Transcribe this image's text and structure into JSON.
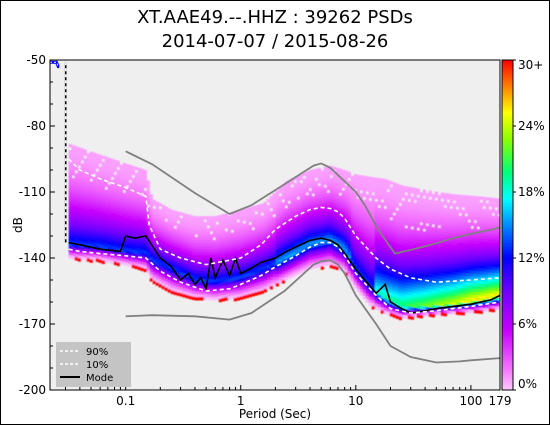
{
  "chart_data": {
    "type": "heatmap",
    "title_line1": "XT.AAE49.--.HHZ : 39262 PSDs",
    "title_line2": "2014-07-07 / 2015-08-26",
    "xlabel": "Period (Sec)",
    "ylabel": "dB",
    "x_scale": "log",
    "xlim": [
      0.022,
      179
    ],
    "ylim": [
      -200,
      -50
    ],
    "x_ticks": [
      {
        "value": 0.1,
        "label": "0.1"
      },
      {
        "value": 1,
        "label": "1"
      },
      {
        "value": 10,
        "label": "10"
      },
      {
        "value": 100,
        "label": "100"
      },
      {
        "value": 179,
        "label": "179"
      }
    ],
    "y_ticks": [
      {
        "value": -50,
        "label": "-50"
      },
      {
        "value": -80,
        "label": "-80"
      },
      {
        "value": -110,
        "label": "-110"
      },
      {
        "value": -140,
        "label": "-140"
      },
      {
        "value": -170,
        "label": "-170"
      },
      {
        "value": -200,
        "label": "-200"
      }
    ],
    "colorbar": {
      "ticks": [
        {
          "value": 0,
          "label": "0%"
        },
        {
          "value": 6,
          "label": "6%"
        },
        {
          "value": 12,
          "label": "12%"
        },
        {
          "value": 18,
          "label": "18%"
        },
        {
          "value": 24,
          "label": "24%"
        },
        {
          "value": 30,
          "label": "30+"
        }
      ],
      "range": [
        0,
        30
      ],
      "colors": [
        "#ffffff",
        "#f080ff",
        "#c000ff",
        "#6000ff",
        "#0000ff",
        "#0080ff",
        "#00ffff",
        "#00ff80",
        "#80ff00",
        "#ffff00",
        "#ff8000",
        "#ff0000"
      ]
    },
    "legend": {
      "position": "bottom-left",
      "entries": [
        {
          "label": "90%",
          "style": "dashed-white"
        },
        {
          "label": "10%",
          "style": "dashed-white"
        },
        {
          "label": "Mode",
          "style": "solid-black"
        }
      ]
    },
    "background_color": "#efefef",
    "nhnm": {
      "x": [
        0.1,
        0.17,
        0.4,
        0.8,
        1.24,
        2.4,
        4.3,
        5.0,
        6.0,
        10.0,
        12.0,
        15.6,
        21.9,
        31.6,
        45.0,
        70.0,
        101.0,
        154.0,
        179.0
      ],
      "y": [
        -91.5,
        -97.4,
        -110.5,
        -120.0,
        -116.0,
        -106.5,
        -98.0,
        -97.0,
        -99.0,
        -110.0,
        -116.0,
        -127.0,
        -138.0,
        -136.0,
        -134.0,
        -131.0,
        -129.0,
        -127.0,
        -126.0
      ]
    },
    "nlnm": {
      "x": [
        0.1,
        0.17,
        0.4,
        0.8,
        1.24,
        2.4,
        4.3,
        5.0,
        6.0,
        7.0,
        8.0,
        10.0,
        15.0,
        20.0,
        30.0,
        50.0,
        80.0,
        100.0,
        179.0
      ],
      "y": [
        -166.5,
        -166.0,
        -166.5,
        -168.0,
        -165.0,
        -155.0,
        -143.0,
        -141.5,
        -141.0,
        -143.0,
        -147.0,
        -157.0,
        -170.0,
        -180.0,
        -185.0,
        -187.5,
        -187.0,
        -186.5,
        -185.5
      ]
    },
    "p90": {
      "x": [
        0.032,
        0.04,
        0.06,
        0.1,
        0.15,
        0.16,
        0.2,
        0.3,
        0.5,
        0.8,
        1.0,
        1.5,
        2.0,
        3.0,
        4.0,
        5.0,
        6.0,
        7.0,
        8.0,
        10.0,
        15.0,
        20.0,
        30.0,
        50.0,
        100.0,
        179.0
      ],
      "y": [
        -95.0,
        -100.0,
        -104.0,
        -108.0,
        -112.0,
        -125.0,
        -136.0,
        -140.0,
        -143.0,
        -141.0,
        -140.0,
        -134.0,
        -127.0,
        -121.0,
        -118.0,
        -117.0,
        -117.5,
        -119.0,
        -122.0,
        -130.0,
        -140.0,
        -145.0,
        -149.0,
        -151.0,
        -150.0,
        -149.0
      ]
    },
    "p10": {
      "x": [
        0.032,
        0.04,
        0.06,
        0.1,
        0.15,
        0.2,
        0.3,
        0.5,
        0.8,
        1.0,
        1.5,
        2.0,
        3.0,
        4.0,
        5.0,
        6.0,
        7.0,
        8.0,
        10.0,
        15.0,
        20.0,
        30.0,
        50.0,
        100.0,
        179.0
      ],
      "y": [
        -136.0,
        -137.0,
        -138.0,
        -139.0,
        -140.0,
        -146.0,
        -151.0,
        -155.0,
        -154.0,
        -152.0,
        -148.0,
        -144.0,
        -139.0,
        -135.0,
        -133.0,
        -133.0,
        -135.0,
        -139.0,
        -147.0,
        -157.0,
        -163.0,
        -165.0,
        -164.0,
        -162.0,
        -160.0
      ]
    },
    "mode": {
      "x": [
        0.032,
        0.04,
        0.06,
        0.09,
        0.1,
        0.12,
        0.15,
        0.2,
        0.25,
        0.3,
        0.35,
        0.4,
        0.45,
        0.5,
        0.55,
        0.6,
        0.7,
        0.8,
        0.9,
        1.0,
        1.2,
        1.5,
        2.0,
        2.5,
        3.0,
        4.0,
        5.0,
        6.0,
        7.0,
        8.0,
        10.0,
        12.0,
        15.0,
        18.0,
        20.0,
        25.0,
        30.0,
        40.0,
        50.0,
        70.0,
        100.0,
        150.0,
        179.0
      ],
      "y": [
        -133.0,
        -134.0,
        -136.0,
        -137.0,
        -130.0,
        -131.0,
        -130.0,
        -140.0,
        -144.0,
        -150.0,
        -147.0,
        -152.0,
        -149.0,
        -154.0,
        -140.0,
        -149.0,
        -141.0,
        -148.0,
        -140.0,
        -147.0,
        -145.0,
        -142.0,
        -140.0,
        -137.0,
        -135.0,
        -132.0,
        -131.0,
        -132.0,
        -134.0,
        -138.0,
        -145.0,
        -150.0,
        -156.0,
        -152.0,
        -160.0,
        -163.0,
        -165.0,
        -164.0,
        -163.0,
        -162.0,
        -161.0,
        -159.0,
        -157.0
      ]
    },
    "edge_trace": {
      "x": [
        0.022,
        0.025,
        0.026,
        0.0265
      ],
      "y": [
        -51.0,
        -51.0,
        -53.0,
        -53.0
      ]
    },
    "density": {
      "x": [
        0.032,
        0.06,
        0.1,
        0.15,
        0.17,
        0.25,
        0.4,
        0.6,
        1.0,
        1.6,
        2.5,
        4.0,
        6.0,
        8.0,
        10.0,
        13.0,
        18.0,
        25.0,
        40.0,
        70.0,
        120.0,
        179.0
      ],
      "y_top": [
        -88.0,
        -93.0,
        -97.0,
        -100.0,
        -113.0,
        -118.0,
        -121.0,
        -121.0,
        -118.0,
        -115.0,
        -105.0,
        -100.0,
        -98.0,
        -100.0,
        -102.0,
        -103.0,
        -104.0,
        -107.0,
        -109.0,
        -111.0,
        -112.0,
        -113.0
      ],
      "y_mode": [
        -134.0,
        -135.0,
        -137.0,
        -138.0,
        -141.0,
        -145.0,
        -150.0,
        -151.0,
        -149.0,
        -145.0,
        -140.0,
        -134.0,
        -132.0,
        -136.0,
        -145.0,
        -153.0,
        -158.0,
        -162.0,
        -162.0,
        -161.0,
        -159.0,
        -157.0
      ],
      "y_bottom": [
        -140.0,
        -141.0,
        -143.0,
        -145.0,
        -150.0,
        -155.0,
        -158.0,
        -159.0,
        -158.0,
        -155.0,
        -150.0,
        -145.0,
        -143.0,
        -146.0,
        -154.0,
        -161.0,
        -165.0,
        -167.0,
        -166.0,
        -165.0,
        -164.0,
        -163.0
      ]
    }
  }
}
